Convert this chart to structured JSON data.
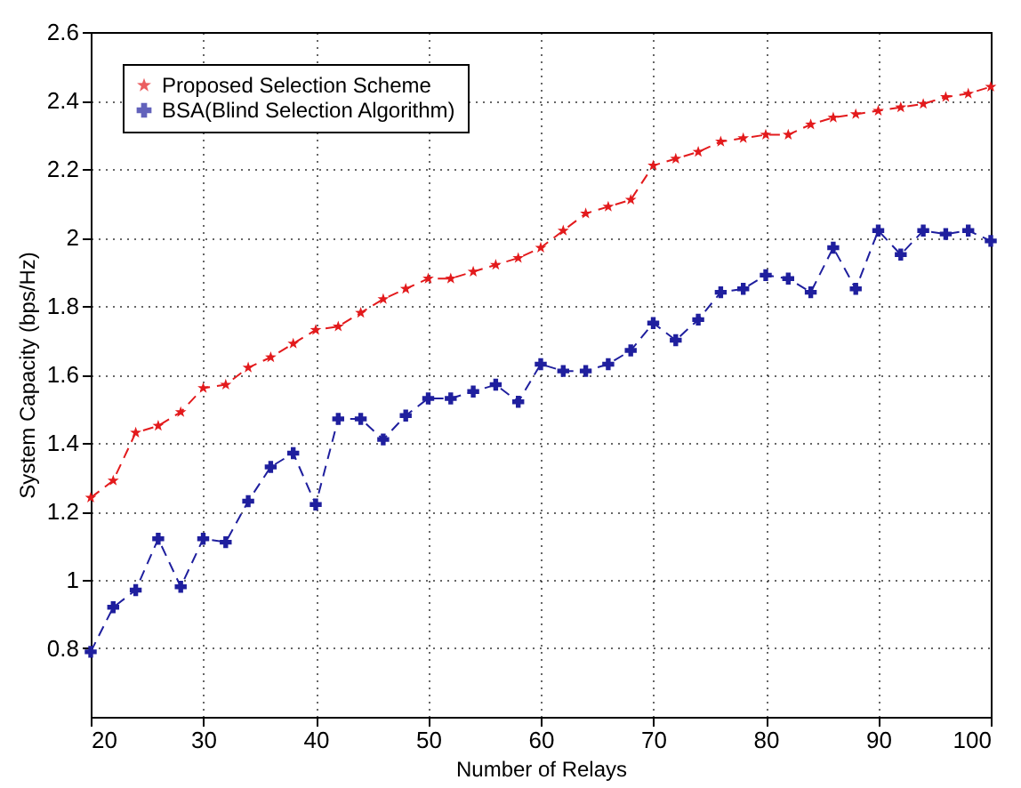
{
  "chart_data": {
    "type": "line",
    "xlabel": "Number of Relays",
    "ylabel": "System Capacity (bps/Hz)",
    "x": [
      20,
      22,
      24,
      26,
      28,
      30,
      32,
      34,
      36,
      38,
      40,
      42,
      44,
      46,
      48,
      50,
      52,
      54,
      56,
      58,
      60,
      62,
      64,
      66,
      68,
      70,
      72,
      74,
      76,
      78,
      80,
      82,
      84,
      86,
      88,
      90,
      92,
      94,
      96,
      98,
      100
    ],
    "series": [
      {
        "name": "Proposed Selection Scheme",
        "color": "#e31a1c",
        "marker": "star",
        "line_style": "dashed",
        "values": [
          1.24,
          1.29,
          1.43,
          1.45,
          1.49,
          1.56,
          1.57,
          1.62,
          1.65,
          1.69,
          1.73,
          1.74,
          1.78,
          1.82,
          1.85,
          1.88,
          1.88,
          1.9,
          1.92,
          1.94,
          1.97,
          2.02,
          2.07,
          2.09,
          2.11,
          2.21,
          2.23,
          2.25,
          2.28,
          2.29,
          2.3,
          2.3,
          2.33,
          2.35,
          2.36,
          2.37,
          2.38,
          2.39,
          2.41,
          2.42,
          2.44
        ]
      },
      {
        "name": "BSA(Blind Selection Algorithm)",
        "color": "#1f1f9e",
        "marker": "cross",
        "line_style": "dashed",
        "values": [
          0.79,
          0.92,
          0.97,
          1.12,
          0.98,
          1.12,
          1.11,
          1.23,
          1.33,
          1.37,
          1.22,
          1.47,
          1.47,
          1.41,
          1.48,
          1.53,
          1.53,
          1.55,
          1.57,
          1.52,
          1.63,
          1.61,
          1.61,
          1.63,
          1.67,
          1.75,
          1.7,
          1.76,
          1.84,
          1.85,
          1.89,
          1.88,
          1.84,
          1.97,
          1.85,
          2.02,
          1.95,
          2.02,
          2.01,
          2.02,
          1.99
        ]
      }
    ],
    "xlim": [
      20,
      100
    ],
    "xticks": [
      20,
      30,
      40,
      50,
      60,
      70,
      80,
      90,
      100
    ],
    "ylim": [
      0.6,
      2.6
    ],
    "yticks": [
      0.8,
      1,
      1.2,
      1.4,
      1.6,
      1.8,
      2,
      2.2,
      2.4,
      2.6
    ],
    "grid": true,
    "legend": "top left"
  }
}
